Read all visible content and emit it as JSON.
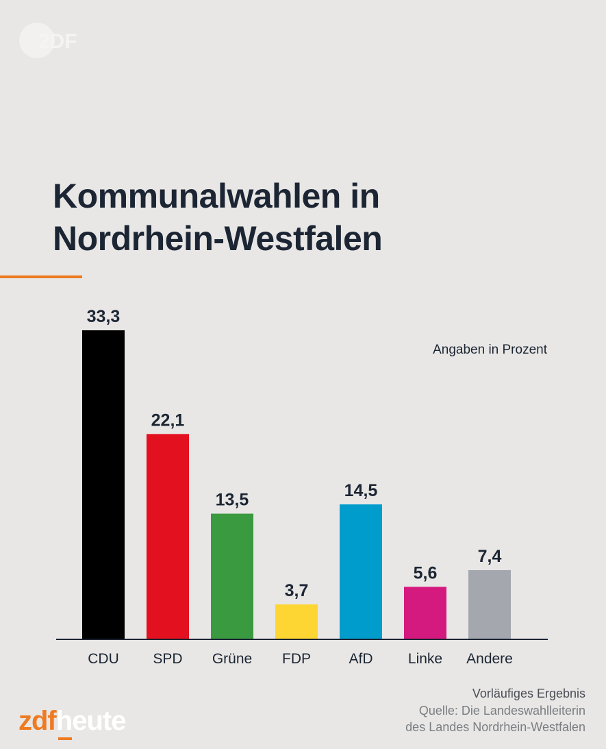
{
  "brand": {
    "top_logo": "ZDF",
    "logo_part1": "zdf",
    "logo_part2": "heute"
  },
  "chart_data": {
    "type": "bar",
    "title": "Kommunalwahlen in Nordrhein-Westfalen",
    "title_lines": [
      "Kommunalwahlen in",
      "Nordrhein-Westfalen"
    ],
    "unit_note": "Angaben in Prozent",
    "categories": [
      "CDU",
      "SPD",
      "Grüne",
      "FDP",
      "AfD",
      "Linke",
      "Andere"
    ],
    "values": [
      33.3,
      22.1,
      13.5,
      3.7,
      14.5,
      5.6,
      7.4
    ],
    "value_labels": [
      "33,3",
      "22,1",
      "13,5",
      "3,7",
      "14,5",
      "5,6",
      "7,4"
    ],
    "colors": [
      "#000000",
      "#e3101f",
      "#3a9a3f",
      "#fdd634",
      "#009ccc",
      "#d4197f",
      "#a4a7ae"
    ],
    "ylim": [
      0,
      33.3
    ],
    "grid": false
  },
  "footer": {
    "status": "Vorläufiges Ergebnis",
    "source_line1": "Quelle: Die Landeswahlleiterin",
    "source_line2": "des Landes Nordrhein-Westfalen"
  },
  "colors": {
    "background": "#e8e7e5",
    "accent": "#ee7b22",
    "text": "#1c2533"
  }
}
